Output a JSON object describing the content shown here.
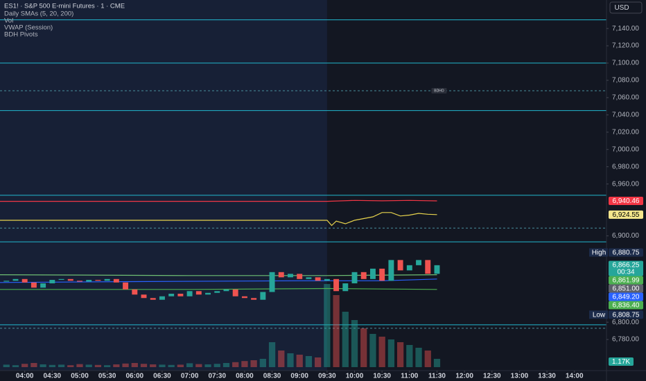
{
  "chart_data": {
    "type": "candlestick",
    "title": "ES1! · S&P 500 E-mini Futures · 1 · CME",
    "indicators": [
      "Daily SMAs (5, 20, 200)",
      "Vol",
      "VWAP (Session)",
      "BDH Pivots"
    ],
    "currency": "USD",
    "x": [
      "03:40",
      "03:50",
      "04:00",
      "04:10",
      "04:20",
      "04:30",
      "04:40",
      "04:50",
      "05:00",
      "05:10",
      "05:20",
      "05:30",
      "05:40",
      "05:50",
      "06:00",
      "06:10",
      "06:20",
      "06:30",
      "06:40",
      "06:50",
      "07:00",
      "07:10",
      "07:20",
      "07:30",
      "07:40",
      "07:50",
      "08:00",
      "08:10",
      "08:20",
      "08:30",
      "08:40",
      "08:50",
      "09:00",
      "09:10",
      "09:20",
      "09:30",
      "09:40",
      "09:50",
      "10:00",
      "10:10",
      "10:20",
      "10:30",
      "10:40",
      "10:50",
      "11:00",
      "11:10",
      "11:20",
      "11:30"
    ],
    "open": [
      6847,
      6848,
      6850,
      6846,
      6840,
      6845,
      6849,
      6850,
      6848,
      6847,
      6849,
      6848,
      6850,
      6846,
      6838,
      6832,
      6828,
      6826,
      6830,
      6833,
      6830,
      6836,
      6832,
      6834,
      6836,
      6838,
      6830,
      6828,
      6826,
      6835,
      6858,
      6852,
      6856,
      6850,
      6852,
      6848,
      6850,
      6836,
      6845,
      6858,
      6850,
      6862,
      6848,
      6872,
      6860,
      6866,
      6872,
      6856
    ],
    "close": [
      6848,
      6850,
      6846,
      6840,
      6845,
      6849,
      6850,
      6848,
      6847,
      6849,
      6848,
      6850,
      6846,
      6838,
      6832,
      6828,
      6826,
      6830,
      6833,
      6830,
      6836,
      6832,
      6834,
      6836,
      6838,
      6830,
      6828,
      6826,
      6835,
      6858,
      6852,
      6856,
      6850,
      6852,
      6848,
      6850,
      6836,
      6845,
      6858,
      6850,
      6862,
      6848,
      6872,
      6860,
      6866,
      6872,
      6856,
      6866
    ],
    "volume": [
      900,
      700,
      1200,
      1500,
      1000,
      800,
      900,
      700,
      1100,
      900,
      800,
      700,
      1000,
      1300,
      1500,
      1200,
      1000,
      900,
      800,
      900,
      1400,
      1100,
      1000,
      1200,
      1500,
      1800,
      2200,
      2500,
      3000,
      9000,
      6000,
      5000,
      4500,
      4000,
      3500,
      30000,
      26000,
      20000,
      17000,
      14000,
      12000,
      11000,
      10000,
      9000,
      8000,
      7000,
      6000,
      3000
    ],
    "up_color": "#26a69a",
    "down_color": "#ef5350",
    "overlays": [
      {
        "x": [
          "03:33",
          "09:30",
          "10:00",
          "10:30",
          "11:00",
          "11:30"
        ],
        "values": [
          6940,
          6940,
          6941,
          6940.5,
          6941,
          6940.46
        ],
        "color": "#f23645"
      },
      {
        "x": [
          "03:33",
          "09:30",
          "09:35",
          "09:40",
          "09:50",
          "10:00",
          "10:10",
          "10:20",
          "10:30",
          "10:40",
          "10:50",
          "11:00",
          "11:10",
          "11:20",
          "11:30"
        ],
        "values": [
          6918,
          6918,
          6912,
          6917,
          6914,
          6918,
          6920,
          6922,
          6927,
          6927,
          6923,
          6924,
          6926,
          6925,
          6924.55
        ],
        "color": "#e8d44d"
      },
      {
        "x": [
          "03:33",
          "06:00",
          "09:00",
          "10:30",
          "11:30"
        ],
        "values": [
          6846,
          6847,
          6848,
          6848,
          6850
        ],
        "color": "#2962ff"
      },
      {
        "x": [
          "03:33",
          "07:00",
          "09:30",
          "11:30"
        ],
        "values": [
          6855,
          6854,
          6854,
          6855
        ],
        "color": "#6fbf73"
      },
      {
        "x": [
          "03:33",
          "07:00",
          "09:30",
          "11:30"
        ],
        "values": [
          6838,
          6838,
          6839,
          6838
        ],
        "color": "#4caf50"
      }
    ],
    "levels": [
      {
        "value": 7150,
        "color": "#22b8cf",
        "style": "solid"
      },
      {
        "value": 7100,
        "color": "#22b8cf",
        "style": "solid"
      },
      {
        "value": 7068,
        "color": "#4a8f9c",
        "style": "dashed"
      },
      {
        "value": 7045,
        "color": "#22b8cf",
        "style": "solid"
      },
      {
        "value": 6947,
        "color": "#22b8cf",
        "style": "solid"
      },
      {
        "value": 6909,
        "color": "#4a8f9c",
        "style": "dashed"
      },
      {
        "value": 6893,
        "color": "#22b8cf",
        "style": "solid"
      },
      {
        "value": 6797,
        "color": "#22b8cf",
        "style": "solid"
      },
      {
        "value": 6793,
        "color": "#4a8f9c",
        "style": "dashed"
      }
    ],
    "level_tag": {
      "label": "BDHO",
      "value": 7068,
      "x": "11:30"
    },
    "price_labels": [
      {
        "caption": "High",
        "label": "6,880.75",
        "value": 6880.75,
        "color": "#1c2b4a",
        "text_color": "#ffffff"
      },
      {
        "label": "6,866.25",
        "value": 6866.25,
        "color": "#26a69a",
        "text_color": "#ffffff"
      },
      {
        "label": "6,861.99",
        "value": 6861.99,
        "color": "#4caf50",
        "text_color": "#ffffff"
      },
      {
        "label": "6,851.00",
        "value": 6851,
        "color": "#5d606b",
        "text_color": "#ffffff"
      },
      {
        "label": "6,849.20",
        "value": 6849.2,
        "color": "#2962ff",
        "text_color": "#ffffff"
      },
      {
        "label": "6,836.40",
        "value": 6836.4,
        "color": "#4caf50",
        "text_color": "#ffffff"
      },
      {
        "caption": "Low",
        "label": "6,808.75",
        "value": 6808.75,
        "color": "#1c2b4a",
        "text_color": "#ffffff"
      },
      {
        "label": "6,940.46",
        "value": 6940.46,
        "color": "#f23645",
        "text_color": "#ffffff"
      },
      {
        "label": "6,924.55",
        "value": 6924.55,
        "color": "#f5e68c",
        "text_color": "#000000"
      }
    ],
    "countdown": "00:34",
    "volume_label": {
      "label": "1.17K",
      "value": 1170
    },
    "session_start": "09:30",
    "xlim": [
      "03:33",
      "14:35"
    ],
    "xticks": [
      "04:00",
      "04:30",
      "05:00",
      "05:30",
      "06:00",
      "06:30",
      "07:00",
      "07:30",
      "08:00",
      "08:30",
      "09:00",
      "09:30",
      "10:00",
      "10:30",
      "11:00",
      "11:30",
      "12:00",
      "12:30",
      "13:00",
      "13:30",
      "14:00"
    ],
    "ylim": [
      6748,
      7173
    ],
    "yticks": [
      {
        "value": 7140,
        "label": "7,140.00"
      },
      {
        "value": 7120,
        "label": "7,120.00"
      },
      {
        "value": 7100,
        "label": "7,100.00"
      },
      {
        "value": 7080,
        "label": "7,080.00"
      },
      {
        "value": 7060,
        "label": "7,060.00"
      },
      {
        "value": 7040,
        "label": "7,040.00"
      },
      {
        "value": 7020,
        "label": "7,020.00"
      },
      {
        "value": 7000,
        "label": "7,000.00"
      },
      {
        "value": 6980,
        "label": "6,980.00"
      },
      {
        "value": 6960,
        "label": "6,960.00"
      },
      {
        "value": 6900,
        "label": "6,900.00"
      },
      {
        "value": 6800,
        "label": "6,800.00"
      },
      {
        "value": 6780,
        "label": "6,780.00"
      }
    ],
    "vlim": [
      0,
      50000
    ]
  }
}
